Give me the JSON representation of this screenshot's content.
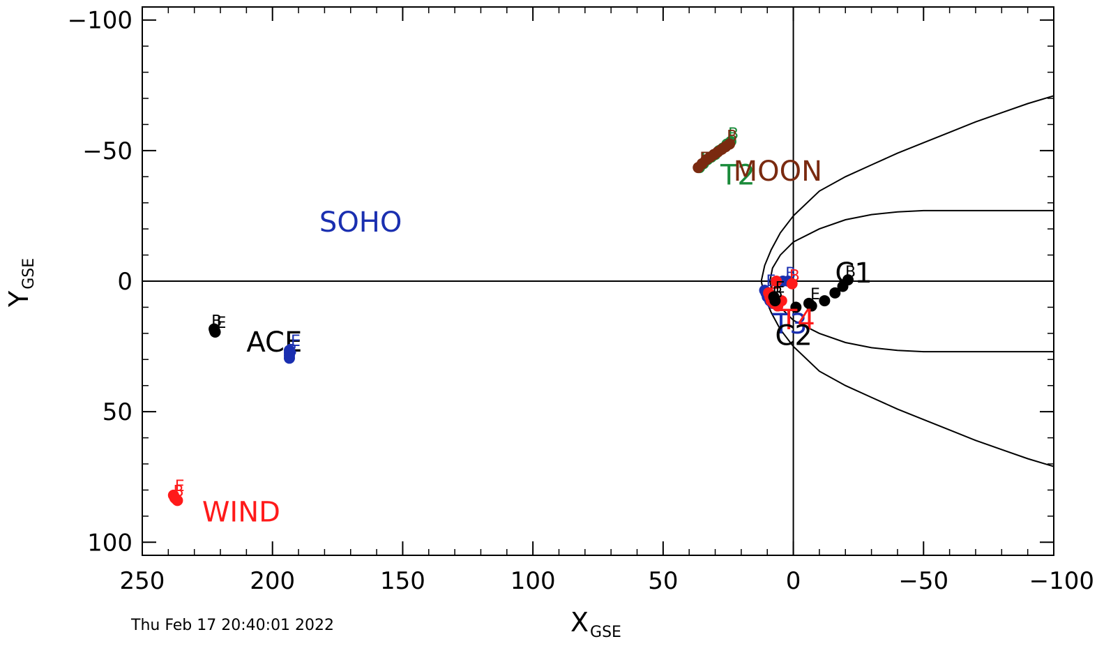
{
  "chart_data": {
    "type": "scatter",
    "title": "",
    "xlabel": {
      "main": "X",
      "sub": "GSE"
    },
    "ylabel": {
      "main": "Y",
      "sub": "GSE"
    },
    "xlim": [
      250,
      -100
    ],
    "ylim": [
      -105,
      105
    ],
    "x_ticks": [
      {
        "value": 250,
        "label": "250"
      },
      {
        "value": 200,
        "label": "200"
      },
      {
        "value": 150,
        "label": "150"
      },
      {
        "value": 100,
        "label": "100"
      },
      {
        "value": 50,
        "label": "50"
      },
      {
        "value": 0,
        "label": "0"
      },
      {
        "value": -50,
        "label": "−50"
      },
      {
        "value": -100,
        "label": "−100"
      }
    ],
    "y_ticks": [
      {
        "value": -100,
        "label": "−100"
      },
      {
        "value": -50,
        "label": "−50"
      },
      {
        "value": 0,
        "label": "0"
      },
      {
        "value": 50,
        "label": "50"
      },
      {
        "value": 100,
        "label": "100"
      }
    ],
    "x_minor_step": 10,
    "y_minor_step": 10,
    "timestamp": "Thu Feb 17 20:40:01 2022",
    "boundaries": {
      "bow_shock": [
        [
          -100,
          -71
        ],
        [
          -90,
          -68
        ],
        [
          -80,
          -64.5
        ],
        [
          -70,
          -61
        ],
        [
          -60,
          -57
        ],
        [
          -50,
          -53
        ],
        [
          -40,
          -49
        ],
        [
          -30,
          -44.5
        ],
        [
          -20,
          -40
        ],
        [
          -10,
          -34.5
        ],
        [
          0,
          -25
        ],
        [
          5,
          -18.5
        ],
        [
          8.5,
          -12
        ],
        [
          11,
          -6
        ],
        [
          12.3,
          0
        ],
        [
          11,
          6
        ],
        [
          8.5,
          12
        ],
        [
          5,
          18.5
        ],
        [
          0,
          25
        ],
        [
          -10,
          34.5
        ],
        [
          -20,
          40
        ],
        [
          -30,
          44.5
        ],
        [
          -40,
          49
        ],
        [
          -50,
          53
        ],
        [
          -60,
          57
        ],
        [
          -70,
          61
        ],
        [
          -80,
          64.5
        ],
        [
          -90,
          68
        ],
        [
          -100,
          71
        ]
      ],
      "magnetopause": [
        [
          -100,
          -27
        ],
        [
          -50,
          -27
        ],
        [
          -40,
          -26.5
        ],
        [
          -30,
          -25.5
        ],
        [
          -20,
          -23.5
        ],
        [
          -10,
          -20
        ],
        [
          0,
          -15
        ],
        [
          5,
          -10
        ],
        [
          8,
          -5
        ],
        [
          9,
          0
        ],
        [
          8,
          5
        ],
        [
          5,
          10
        ],
        [
          0,
          15
        ],
        [
          -10,
          20
        ],
        [
          -20,
          23.5
        ],
        [
          -30,
          25.5
        ],
        [
          -40,
          26.5
        ],
        [
          -50,
          27
        ],
        [
          -100,
          27
        ]
      ]
    },
    "spacecraft": [
      {
        "label": "ACE",
        "color": "#000000",
        "points": [
          [
            222,
            19.5
          ],
          [
            222.2,
            19
          ],
          [
            222.4,
            18.3
          ]
        ],
        "begin_label": "B",
        "end_label": "E",
        "label_pos": [
          210,
          27
        ]
      },
      {
        "label": "SOHO",
        "color": "#1a2fb0",
        "points": [
          [
            193.5,
            26.5
          ],
          [
            193.5,
            27.5
          ],
          [
            193.5,
            28.5
          ],
          [
            193.5,
            29.5
          ]
        ],
        "begin_label": "B",
        "end_label": "E",
        "label_pos": [
          182,
          -19
        ]
      },
      {
        "label": "WIND",
        "color": "#ff1a1a",
        "points": [
          [
            238,
            82
          ],
          [
            237.5,
            83
          ],
          [
            236.5,
            84
          ],
          [
            237,
            83.5
          ]
        ],
        "begin_label": "B",
        "end_label": "E",
        "label_pos": [
          227,
          92
        ]
      },
      {
        "label": "T2",
        "color": "#1a8a3a",
        "points": [
          [
            36,
            -43.5
          ],
          [
            34.5,
            -45
          ],
          [
            33,
            -46.5
          ],
          [
            31.5,
            -47.5
          ],
          [
            30,
            -48.5
          ],
          [
            28.5,
            -50
          ],
          [
            27,
            -51
          ],
          [
            25.5,
            -52.5
          ],
          [
            24,
            -53.5
          ]
        ],
        "begin_label": "B",
        "end_label": "E",
        "label_pos": [
          28,
          -37
        ]
      },
      {
        "label": "MOON",
        "color": "#7a2a10",
        "points": [
          [
            36.5,
            -43.5
          ],
          [
            35,
            -45
          ],
          [
            33.5,
            -46.5
          ],
          [
            32,
            -47.5
          ],
          [
            30.5,
            -48.5
          ],
          [
            29,
            -49.5
          ],
          [
            27.5,
            -50.5
          ],
          [
            26,
            -51.5
          ],
          [
            24.5,
            -52.5
          ]
        ],
        "begin_label": "B",
        "end_label": "E",
        "label_pos": [
          23,
          -38.5
        ]
      },
      {
        "label": "C1",
        "color": "#000000",
        "points": [
          [
            -6,
            8.5
          ],
          [
            -1,
            10
          ],
          [
            -7,
            9.5
          ],
          [
            -12,
            7.5
          ],
          [
            -16,
            4.5
          ],
          [
            -19,
            2
          ],
          [
            -21,
            -0.5
          ]
        ],
        "begin_label": "B",
        "end_label": "E",
        "label_pos": [
          -16,
          0.5
        ]
      },
      {
        "label": "T3",
        "color": "#1a2fb0",
        "points": [
          [
            11,
            3.5
          ],
          [
            10.5,
            4.5
          ],
          [
            10,
            6
          ],
          [
            9,
            7.5
          ],
          [
            8,
            8.5
          ],
          [
            6,
            9.5
          ],
          [
            4,
            0
          ],
          [
            2,
            0
          ]
        ],
        "begin_label": "B",
        "end_label": "E",
        "label_pos": [
          8,
          20
        ]
      },
      {
        "label": "T4",
        "color": "#ff1a1a",
        "points": [
          [
            9.5,
            4.5
          ],
          [
            9,
            6
          ],
          [
            8.5,
            7.5
          ],
          [
            7.5,
            8.5
          ],
          [
            6,
            9.5
          ],
          [
            4.5,
            7.5
          ],
          [
            6.5,
            0
          ],
          [
            0.5,
            1
          ]
        ],
        "begin_label": "B",
        "end_label": "E",
        "label_pos": [
          5,
          18.5
        ]
      },
      {
        "label": "C2",
        "color": "#000000",
        "points": [
          [
            7.5,
            6
          ],
          [
            7,
            7.5
          ]
        ],
        "begin_label": "B",
        "end_label": "E",
        "label_pos": [
          7,
          24.5
        ]
      }
    ]
  }
}
